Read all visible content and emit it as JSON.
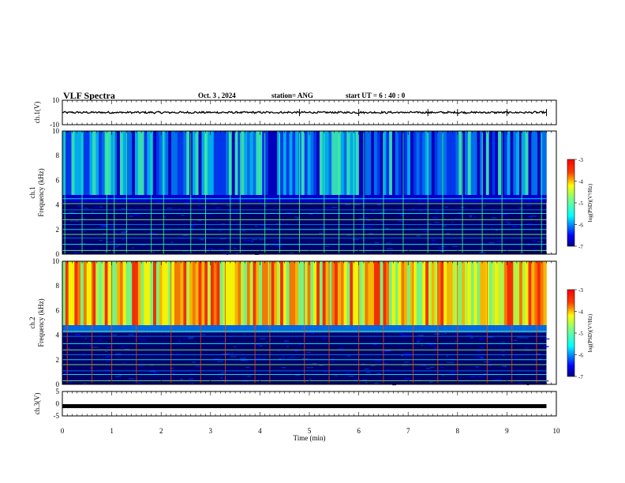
{
  "header": {
    "title": "VLF Spectra",
    "date": "Oct. 3 , 2024",
    "station": "station= ANG",
    "start": "start UT = 6 : 40 : 0"
  },
  "chart_data": [
    {
      "type": "line",
      "panel": "ch1-waveform",
      "ylabel": "ch.1(V)",
      "ylim": [
        -10,
        10
      ],
      "yticks": [
        "10",
        "-10"
      ],
      "xlim": [
        0,
        9.8
      ],
      "series": [
        {
          "values": [
            0,
            0.4,
            -0.3,
            0.5,
            -0.2,
            0.1,
            -0.6,
            0.3,
            -0.1,
            0.2
          ]
        }
      ],
      "spikes": [
        4.8,
        6.0,
        7.4,
        8.0,
        9.0,
        9.8
      ]
    },
    {
      "type": "heatmap",
      "panel": "ch1-spectrogram",
      "ylabel": "ch.1 Frequency (kHz)",
      "ylim": [
        0,
        10
      ],
      "yticks": [
        "0",
        "2",
        "4",
        "6",
        "8",
        "10"
      ],
      "xlim": [
        0,
        9.8
      ],
      "colorbar": {
        "label": "log(PSD)(V²/Hz)",
        "ticks": [
          "-3",
          "-4",
          "-5",
          "-6",
          "-7"
        ]
      },
      "noise_lines_khz": [
        0.3,
        0.8,
        1.3,
        1.6,
        2.0,
        2.4,
        2.8,
        3.3,
        3.6,
        4.1,
        4.5
      ],
      "band_low_khz": 4.8,
      "intensity": "low",
      "spark_times_min": [
        0.05,
        0.4,
        0.9,
        1.05,
        1.3,
        1.8,
        2.05,
        2.6,
        2.9,
        3.4,
        3.6,
        4.1,
        4.4,
        4.8,
        5.3,
        5.6,
        5.9,
        6.1,
        6.5,
        6.9,
        7.4,
        7.7,
        8.1,
        8.5,
        8.9,
        9.3,
        9.7
      ]
    },
    {
      "type": "heatmap",
      "panel": "ch2-spectrogram",
      "ylabel": "ch.2 Frequency (kHz)",
      "ylim": [
        0,
        10
      ],
      "yticks": [
        "0",
        "2",
        "4",
        "6",
        "8",
        "10"
      ],
      "xlim": [
        0,
        9.8
      ],
      "colorbar": {
        "label": "log(PSD)(V²/Hz)",
        "ticks": [
          "-3",
          "-4",
          "-5",
          "-6",
          "-7"
        ]
      },
      "noise_lines_khz": [
        0.3,
        0.8,
        1.1,
        1.6,
        2.0,
        2.4,
        2.8,
        3.3,
        3.9,
        4.3
      ],
      "band_low_khz": 4.8,
      "intensity": "high",
      "spark_times_min": [
        0.1,
        0.6,
        1.0,
        1.5,
        2.2,
        2.8,
        3.3,
        3.9,
        4.2,
        4.9,
        5.4,
        6.0,
        6.5,
        7.1,
        7.6,
        8.0,
        8.6,
        9.1,
        9.6
      ]
    },
    {
      "type": "line",
      "panel": "ch3-waveform",
      "ylabel": "ch.3(V)",
      "ylim": [
        -5,
        5
      ],
      "yticks": [
        "5",
        "0",
        "-5"
      ],
      "xlim": [
        0,
        9.8
      ],
      "series": [
        {
          "values": [
            -1.0,
            -1.0,
            -1.0,
            -1.0,
            -1.0
          ]
        }
      ]
    }
  ],
  "xaxis": {
    "label": "Time (min)",
    "ticks": [
      "0",
      "1",
      "2",
      "3",
      "4",
      "5",
      "6",
      "7",
      "8",
      "9",
      "10"
    ],
    "range": [
      0,
      10
    ]
  },
  "colors": {
    "jet": [
      "#00007f",
      "#0000ff",
      "#0080ff",
      "#00ffff",
      "#80ff80",
      "#ffff00",
      "#ff8000",
      "#ff0000",
      "#7f0000"
    ]
  }
}
